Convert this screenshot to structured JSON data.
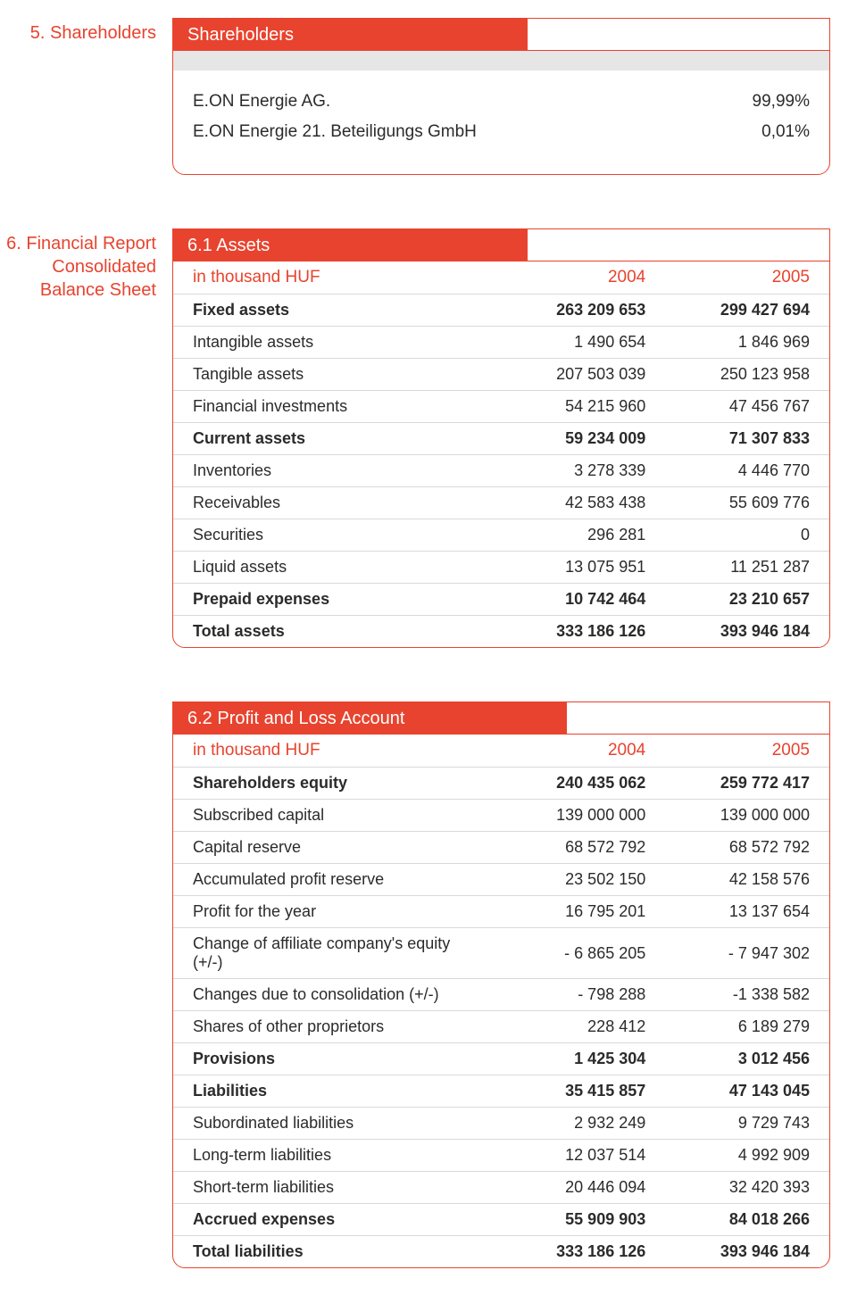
{
  "shareholders_section": {
    "label": "5.  Shareholders",
    "title": "Shareholders",
    "rows": [
      {
        "name": "E.ON Energie AG.",
        "pct": "99,99%"
      },
      {
        "name": "E.ON Energie 21. Beteiligungs GmbH",
        "pct": "0,01%"
      }
    ]
  },
  "assets_section": {
    "label": "6.  Financial Report Consolidated Balance Sheet",
    "title": "6.1  Assets",
    "year_label": "in  thousand HUF",
    "years": [
      "2004",
      "2005"
    ],
    "rows": [
      {
        "label": "Fixed assets",
        "v1": "263 209 653",
        "v2": "299 427 694",
        "bold": true
      },
      {
        "label": "Intangible assets",
        "v1": "1 490 654",
        "v2": "1 846 969"
      },
      {
        "label": "Tangible assets",
        "v1": "207 503 039",
        "v2": "250 123 958"
      },
      {
        "label": "Financial investments",
        "v1": "54 215 960",
        "v2": "47 456 767"
      },
      {
        "label": "Current assets",
        "v1": "59 234 009",
        "v2": "71 307 833",
        "bold": true
      },
      {
        "label": "Inventories",
        "v1": "3 278 339",
        "v2": "4 446 770"
      },
      {
        "label": "Receivables",
        "v1": "42 583 438",
        "v2": "55 609 776"
      },
      {
        "label": "Securities",
        "v1": "296 281",
        "v2": "0"
      },
      {
        "label": "Liquid assets",
        "v1": "13 075 951",
        "v2": "11 251 287"
      },
      {
        "label": "Prepaid expenses",
        "v1": "10 742 464",
        "v2": "23 210 657",
        "bold": true
      },
      {
        "label": "Total assets",
        "v1": "333 186 126",
        "v2": "393 946 184",
        "bold": true,
        "last": true
      }
    ]
  },
  "pl_section": {
    "title": "6.2  Profit and Loss Account",
    "year_label": "in  thousand HUF",
    "years": [
      "2004",
      "2005"
    ],
    "rows": [
      {
        "label": "Shareholders equity",
        "v1": "240 435 062",
        "v2": "259 772 417",
        "bold": true
      },
      {
        "label": "Subscribed capital",
        "v1": "139 000 000",
        "v2": "139 000 000"
      },
      {
        "label": "Capital reserve",
        "v1": "68 572 792",
        "v2": "68 572 792"
      },
      {
        "label": "Accumulated profit reserve",
        "v1": "23 502 150",
        "v2": "42 158 576"
      },
      {
        "label": "Profit for the year",
        "v1": "16 795 201",
        "v2": "13 137 654"
      },
      {
        "label": "Change of affiliate company's equity (+/-)",
        "v1": "- 6 865 205",
        "v2": "- 7 947 302"
      },
      {
        "label": "Changes due to consolidation  (+/-)",
        "v1": "- 798 288",
        "v2": "-1 338 582"
      },
      {
        "label": "Shares of other proprietors",
        "v1": "228 412",
        "v2": "6 189 279"
      },
      {
        "label": "Provisions",
        "v1": "1 425 304",
        "v2": "3 012 456",
        "bold": true
      },
      {
        "label": "Liabilities",
        "v1": "35 415 857",
        "v2": "47 143 045",
        "bold": true
      },
      {
        "label": "Subordinated liabilities",
        "v1": "2 932 249",
        "v2": "9 729 743"
      },
      {
        "label": "Long-term liabilities",
        "v1": "12 037 514",
        "v2": "4 992 909"
      },
      {
        "label": "Short-term liabilities",
        "v1": "20 446 094",
        "v2": "32 420 393"
      },
      {
        "label": "Accrued expenses",
        "v1": "55 909 903",
        "v2": "84 018 266",
        "bold": true
      },
      {
        "label": "Total liabilities",
        "v1": "333 186 126",
        "v2": "393 946 184",
        "bold": true,
        "last": true
      }
    ]
  },
  "colors": {
    "accent": "#e8432e",
    "grey": "#e6e6e6",
    "rule": "#d9d9d9",
    "text": "#2b2b2b"
  }
}
